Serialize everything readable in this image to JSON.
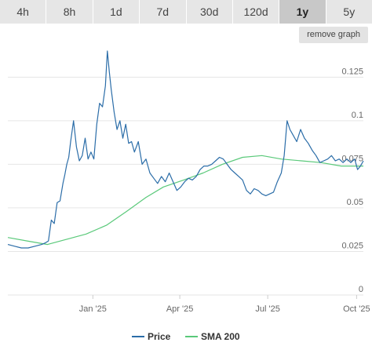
{
  "range_tabs": [
    "4h",
    "8h",
    "1d",
    "7d",
    "30d",
    "120d",
    "1y",
    "5y"
  ],
  "active_tab": "1y",
  "remove_graph_label": "remove graph",
  "colors": {
    "price": "#2b6da8",
    "sma": "#5ac97a",
    "grid": "#e6e6e6",
    "active_tab": "#c8c8c8"
  },
  "chart_data": {
    "type": "line",
    "title": "",
    "xlabel": "",
    "ylabel": "",
    "ylim": [
      0,
      0.14
    ],
    "yticks": [
      0,
      0.025,
      0.05,
      0.075,
      0.1,
      0.125
    ],
    "ytick_labels": [
      "0",
      "0.025",
      "0.05",
      "0.075",
      "0.1",
      "0.125"
    ],
    "xlim": [
      "2024-10-05",
      "2025-10-08"
    ],
    "xticks": [
      "2025-01-01",
      "2025-04-01",
      "2025-07-01",
      "2025-10-01"
    ],
    "xtick_labels": [
      "Jan '25",
      "Apr '25",
      "Jul '25",
      "Oct '25"
    ],
    "grid": "horizontal",
    "legend_position": "bottom",
    "series": [
      {
        "name": "Price",
        "color": "#2b6da8",
        "x": [
          "2024-10-05",
          "2024-10-12",
          "2024-10-19",
          "2024-10-26",
          "2024-11-02",
          "2024-11-09",
          "2024-11-13",
          "2024-11-16",
          "2024-11-19",
          "2024-11-22",
          "2024-11-25",
          "2024-11-28",
          "2024-12-01",
          "2024-12-03",
          "2024-12-05",
          "2024-12-07",
          "2024-12-09",
          "2024-12-12",
          "2024-12-15",
          "2024-12-18",
          "2024-12-21",
          "2024-12-24",
          "2024-12-27",
          "2024-12-30",
          "2025-01-02",
          "2025-01-05",
          "2025-01-08",
          "2025-01-11",
          "2025-01-14",
          "2025-01-16",
          "2025-01-18",
          "2025-01-20",
          "2025-01-23",
          "2025-01-26",
          "2025-01-29",
          "2025-02-01",
          "2025-02-04",
          "2025-02-07",
          "2025-02-10",
          "2025-02-13",
          "2025-02-17",
          "2025-02-21",
          "2025-02-25",
          "2025-03-01",
          "2025-03-05",
          "2025-03-09",
          "2025-03-13",
          "2025-03-17",
          "2025-03-21",
          "2025-03-25",
          "2025-03-29",
          "2025-04-02",
          "2025-04-06",
          "2025-04-10",
          "2025-04-14",
          "2025-04-18",
          "2025-04-22",
          "2025-04-26",
          "2025-04-30",
          "2025-05-04",
          "2025-05-08",
          "2025-05-12",
          "2025-05-16",
          "2025-05-20",
          "2025-05-24",
          "2025-05-28",
          "2025-06-01",
          "2025-06-05",
          "2025-06-09",
          "2025-06-13",
          "2025-06-17",
          "2025-06-21",
          "2025-06-25",
          "2025-06-29",
          "2025-07-03",
          "2025-07-07",
          "2025-07-11",
          "2025-07-15",
          "2025-07-18",
          "2025-07-21",
          "2025-07-24",
          "2025-07-27",
          "2025-07-31",
          "2025-08-04",
          "2025-08-08",
          "2025-08-12",
          "2025-08-16",
          "2025-08-20",
          "2025-08-24",
          "2025-08-28",
          "2025-09-01",
          "2025-09-05",
          "2025-09-09",
          "2025-09-13",
          "2025-09-17",
          "2025-09-21",
          "2025-09-25",
          "2025-09-29",
          "2025-10-02",
          "2025-10-05",
          "2025-10-08"
        ],
        "values": [
          0.029,
          0.028,
          0.027,
          0.027,
          0.028,
          0.029,
          0.03,
          0.031,
          0.043,
          0.041,
          0.053,
          0.054,
          0.064,
          0.069,
          0.075,
          0.079,
          0.088,
          0.1,
          0.085,
          0.077,
          0.08,
          0.09,
          0.078,
          0.082,
          0.078,
          0.098,
          0.11,
          0.108,
          0.12,
          0.14,
          0.128,
          0.118,
          0.105,
          0.095,
          0.1,
          0.09,
          0.098,
          0.087,
          0.088,
          0.082,
          0.088,
          0.075,
          0.078,
          0.07,
          0.067,
          0.064,
          0.068,
          0.065,
          0.07,
          0.065,
          0.06,
          0.062,
          0.065,
          0.067,
          0.066,
          0.068,
          0.072,
          0.074,
          0.074,
          0.075,
          0.077,
          0.079,
          0.078,
          0.075,
          0.072,
          0.07,
          0.068,
          0.066,
          0.06,
          0.058,
          0.061,
          0.06,
          0.058,
          0.057,
          0.058,
          0.059,
          0.065,
          0.07,
          0.08,
          0.1,
          0.095,
          0.092,
          0.088,
          0.095,
          0.09,
          0.087,
          0.083,
          0.08,
          0.076,
          0.077,
          0.078,
          0.08,
          0.077,
          0.078,
          0.076,
          0.078,
          0.076,
          0.078,
          0.072,
          0.074,
          0.077
        ]
      },
      {
        "name": "SMA 200",
        "color": "#5ac97a",
        "x": [
          "2024-10-05",
          "2024-10-25",
          "2024-11-15",
          "2024-12-05",
          "2024-12-25",
          "2025-01-15",
          "2025-02-05",
          "2025-02-25",
          "2025-03-15",
          "2025-04-05",
          "2025-04-25",
          "2025-05-15",
          "2025-06-05",
          "2025-06-25",
          "2025-07-15",
          "2025-08-05",
          "2025-08-25",
          "2025-09-15",
          "2025-10-08"
        ],
        "values": [
          0.033,
          0.031,
          0.029,
          0.032,
          0.035,
          0.04,
          0.048,
          0.056,
          0.062,
          0.066,
          0.07,
          0.075,
          0.079,
          0.08,
          0.078,
          0.077,
          0.076,
          0.074,
          0.074
        ]
      }
    ]
  }
}
